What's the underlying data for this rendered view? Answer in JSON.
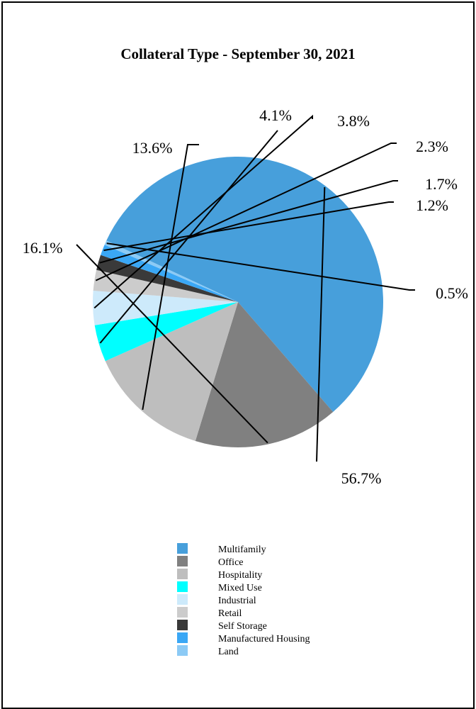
{
  "chart_data": {
    "type": "pie",
    "title": "Collateral Type - September 30, 2021",
    "slices": [
      {
        "name": "Multifamily",
        "value": 56.7,
        "label": "56.7%",
        "color": "#479fdb"
      },
      {
        "name": "Office",
        "value": 16.1,
        "label": "16.1%",
        "color": "#808080"
      },
      {
        "name": "Hospitality",
        "value": 13.6,
        "label": "13.6%",
        "color": "#bebebe"
      },
      {
        "name": "Mixed Use",
        "value": 4.1,
        "label": "4.1%",
        "color": "#00ffff"
      },
      {
        "name": "Industrial",
        "value": 3.8,
        "label": "3.8%",
        "color": "#cdeafb"
      },
      {
        "name": "Retail",
        "value": 2.3,
        "label": "2.3%",
        "color": "#cccccc"
      },
      {
        "name": "Self Storage",
        "value": 1.7,
        "label": "1.7%",
        "color": "#3a3a3a"
      },
      {
        "name": "Manufactured Housing",
        "value": 1.2,
        "label": "1.2%",
        "color": "#3aa7f5"
      },
      {
        "name": "Land",
        "value": 0.5,
        "label": "0.5%",
        "color": "#8ccaf5"
      }
    ],
    "legend_position": "bottom"
  }
}
